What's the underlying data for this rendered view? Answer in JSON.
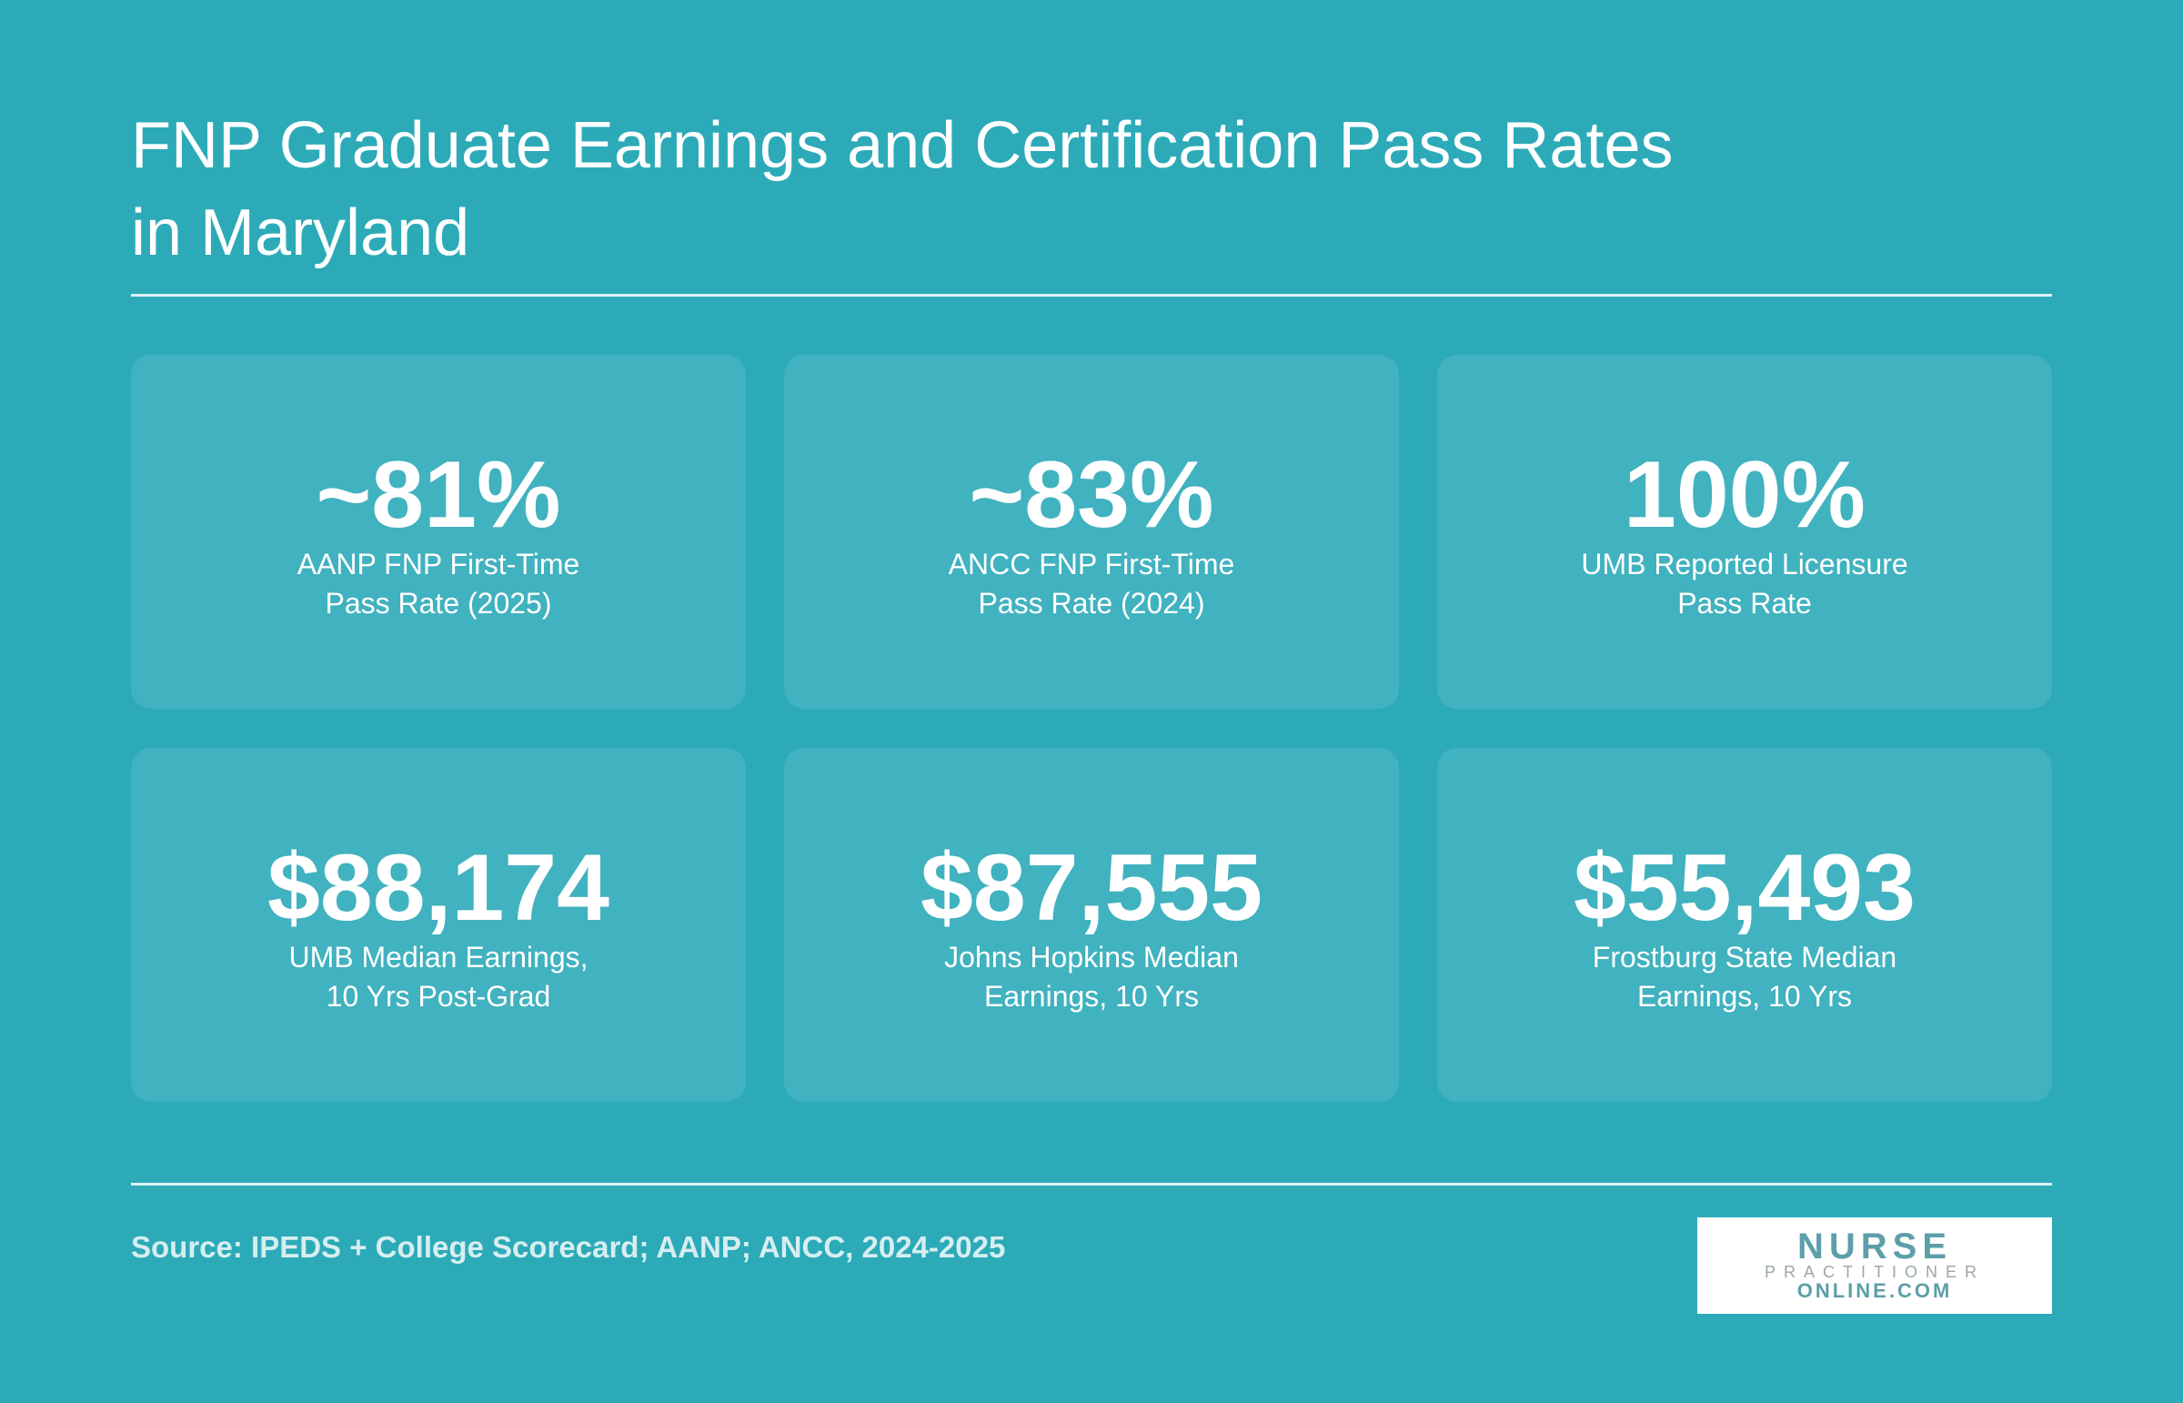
{
  "header": {
    "title_lines": [
      "FNP Graduate Earnings and Certification Pass Rates",
      "in Maryland"
    ]
  },
  "stats": [
    {
      "value": "~81%",
      "label_lines": [
        "AANP FNP First-Time",
        "Pass Rate (2025)"
      ]
    },
    {
      "value": "~83%",
      "label_lines": [
        "ANCC FNP First-Time",
        "Pass Rate (2024)"
      ]
    },
    {
      "value": "100%",
      "label_lines": [
        "UMB Reported Licensure",
        "Pass Rate"
      ]
    },
    {
      "value": "$88,174",
      "label_lines": [
        "UMB Median Earnings,",
        "10 Yrs Post-Grad"
      ]
    },
    {
      "value": "$87,555",
      "label_lines": [
        "Johns Hopkins Median",
        "Earnings, 10 Yrs"
      ]
    },
    {
      "value": "$55,493",
      "label_lines": [
        "Frostburg State Median",
        "Earnings, 10 Yrs"
      ]
    }
  ],
  "footer": {
    "source": "Source: IPEDS + College Scorecard; AANP; ANCC, 2024-2025",
    "logo": {
      "line1": "NURSE",
      "line2": "PRACTITIONER",
      "line3": "ONLINE.COM"
    }
  }
}
